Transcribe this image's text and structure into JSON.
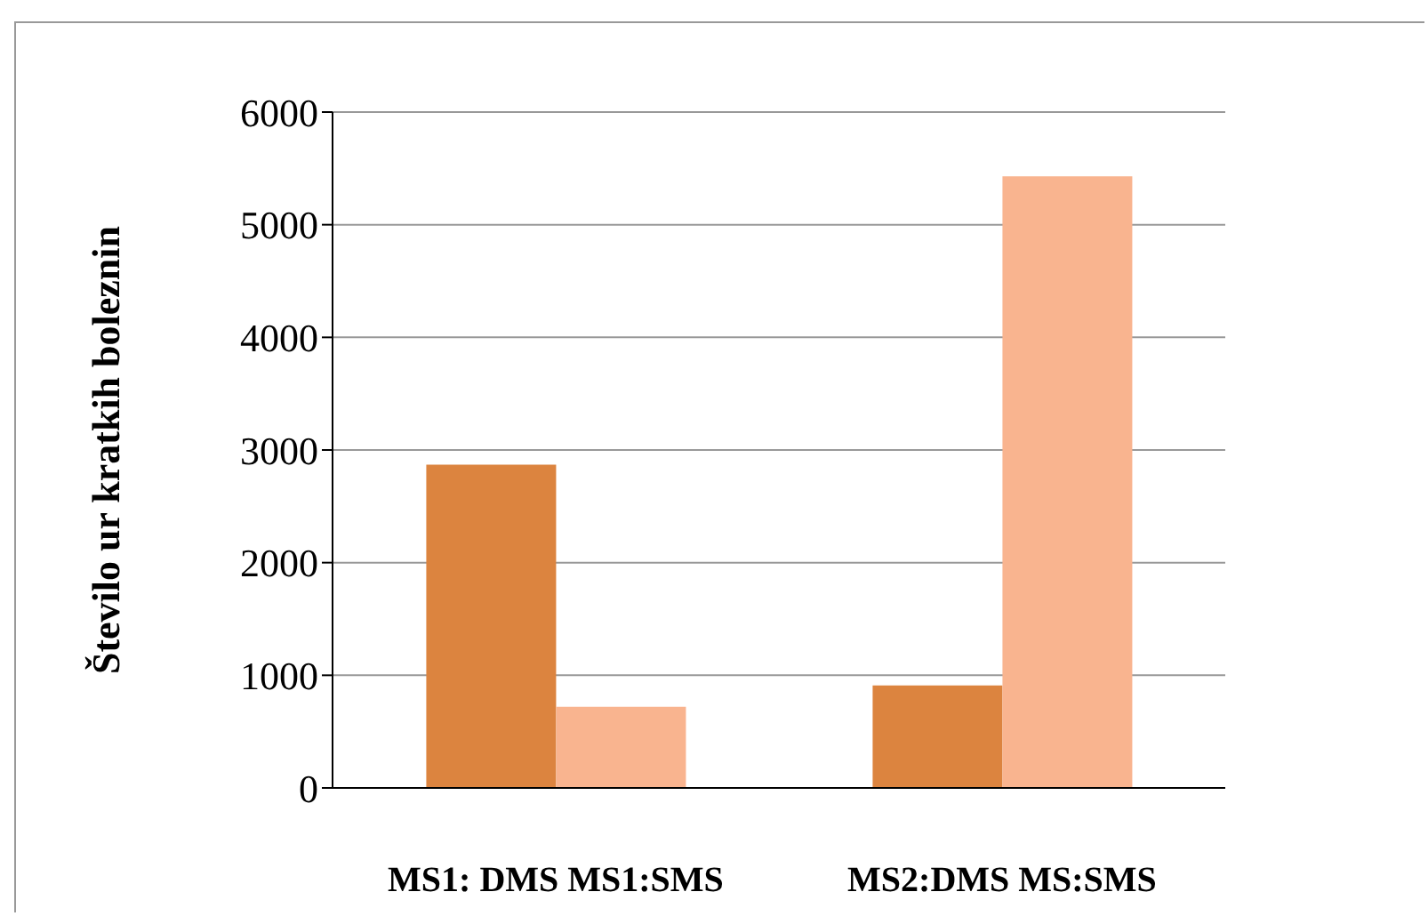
{
  "chart_data": {
    "type": "bar",
    "ylabel": "Število ur  kratkih boleznin",
    "categories": [
      "MS1: DMS MS1:SMS",
      "MS2:DMS MS:SMS"
    ],
    "series": [
      {
        "color": "#dc843f",
        "values": [
          2870,
          910
        ]
      },
      {
        "color": "#f9b48f",
        "values": [
          720,
          5430
        ]
      }
    ],
    "ylim": [
      0,
      6000
    ],
    "yticks": [
      0,
      1000,
      2000,
      3000,
      4000,
      5000,
      6000
    ],
    "grid": "y"
  }
}
